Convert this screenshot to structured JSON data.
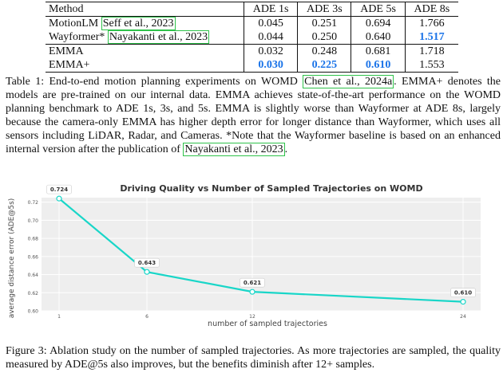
{
  "table": {
    "headers": [
      "Method",
      "ADE 1s",
      "ADE 3s",
      "ADE 5s",
      "ADE 8s"
    ],
    "rows": [
      {
        "method": "MotionLM ",
        "cite": "Seff et al., 2023",
        "values": [
          "0.045",
          "0.251",
          "0.694",
          "1.766"
        ],
        "best": [
          false,
          false,
          false,
          false
        ]
      },
      {
        "method": "Wayformer* ",
        "cite": "Nayakanti et al., 2023",
        "values": [
          "0.044",
          "0.250",
          "0.640",
          "1.517"
        ],
        "best": [
          false,
          false,
          false,
          true
        ]
      },
      {
        "method": "EMMA",
        "cite": "",
        "values": [
          "0.032",
          "0.248",
          "0.681",
          "1.718"
        ],
        "best": [
          false,
          false,
          false,
          false
        ]
      },
      {
        "method": "EMMA+",
        "cite": "",
        "values": [
          "0.030",
          "0.225",
          "0.610",
          "1.553"
        ],
        "best": [
          true,
          true,
          true,
          false
        ]
      }
    ]
  },
  "caption1": {
    "part1": "Table 1: End-to-end motion planning experiments on WOMD ",
    "cite1": "Chen et al., 2024a",
    "part2": ". EMMA+ denotes the models are pre-trained on our internal data. EMMA achieves state-of-the-art performance on the WOMD planning benchmark to ADE 1s, 3s, and 5s. EMMA is slightly worse than Wayformer at ADE 8s, largely because the camera-only EMMA has higher depth error for longer distance than Wayformer, which uses all sensors including LiDAR, Radar, and Cameras. *Note that the Wayformer baseline is based on an enhanced internal version after the publication of ",
    "cite2": "Nayakanti et al., 2023",
    "part3": "."
  },
  "chart_data": {
    "type": "line",
    "title": "Driving Quality vs Number of Sampled Trajectories on WOMD",
    "xlabel": "number of sampled trajectories",
    "ylabel": "average distance error (ADE@5s)",
    "x": [
      1,
      6,
      12,
      24
    ],
    "y": [
      0.724,
      0.643,
      0.621,
      0.61
    ],
    "data_labels": [
      "0.724",
      "0.643",
      "0.621",
      "0.610"
    ],
    "xticks": [
      "1",
      "6",
      "12",
      "24"
    ],
    "yticks": [
      "0.60",
      "0.62",
      "0.64",
      "0.66",
      "0.68",
      "0.70",
      "0.72"
    ],
    "ylim": [
      0.6,
      0.725
    ],
    "xlim": [
      0,
      25
    ],
    "grid": true,
    "line_color": "#19d6c8",
    "background": "#eeeeee"
  },
  "caption3": {
    "text": "Figure 3: Ablation study on the number of sampled trajectories. As more trajectories are sampled, the quality measured by ADE@5s also improves, but the benefits diminish after 12+ samples."
  }
}
